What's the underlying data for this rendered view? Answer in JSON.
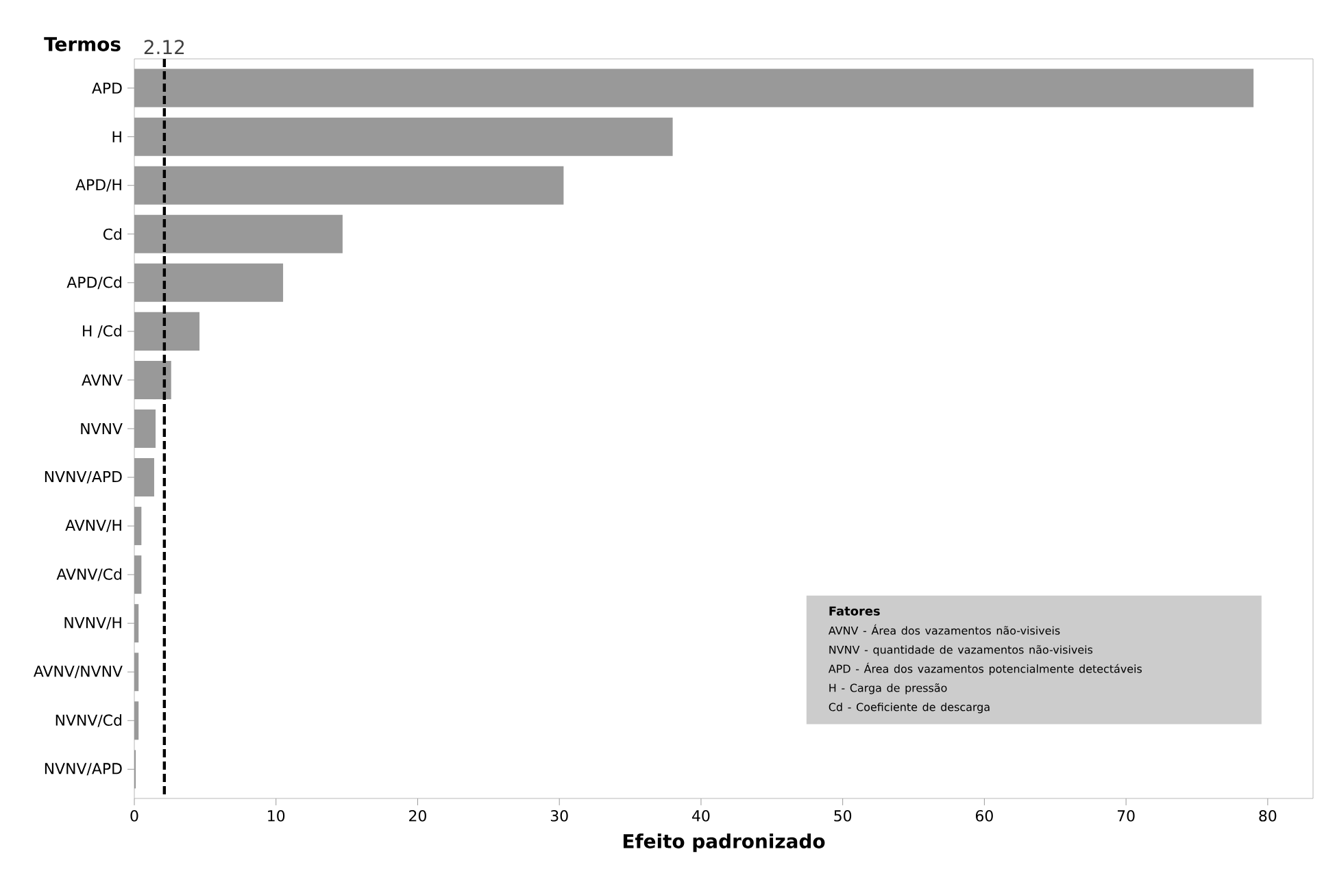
{
  "chart_data": {
    "type": "bar",
    "orientation": "horizontal",
    "xlabel": "Efeito padronizado",
    "ylabel": "Termos",
    "categories": [
      "APD",
      "H",
      "APD/H",
      "Cd",
      "APD/Cd",
      "H /Cd",
      "AVNV",
      "NVNV",
      "NVNV/APD",
      "AVNV/H",
      "AVNV/Cd",
      "NVNV/H",
      "AVNV/NVNV",
      "NVNV/Cd",
      "NVNV/APD"
    ],
    "values": [
      79.0,
      38.0,
      30.3,
      14.7,
      10.5,
      4.6,
      2.6,
      1.5,
      1.4,
      0.5,
      0.5,
      0.3,
      0.3,
      0.3,
      0.1
    ],
    "color": "#999999",
    "xlim": [
      0,
      83.2
    ],
    "xticks": [
      0,
      10,
      20,
      30,
      40,
      50,
      60,
      70,
      80
    ],
    "ref_lines": [
      {
        "axis": "x",
        "value": 2.12,
        "label": "2.12",
        "color": "#000000",
        "line_style": "dashed"
      }
    ],
    "annotations": [
      "Fatores",
      "AVNV - Área dos vazamentos não-visiveis",
      "NVNV - quantidade de vazamentos não-visiveis",
      "APD - Área dos vazamentos potencialmente detectáveis",
      "H - Carga de pressão",
      "Cd - Coeficiente de descarga"
    ]
  }
}
